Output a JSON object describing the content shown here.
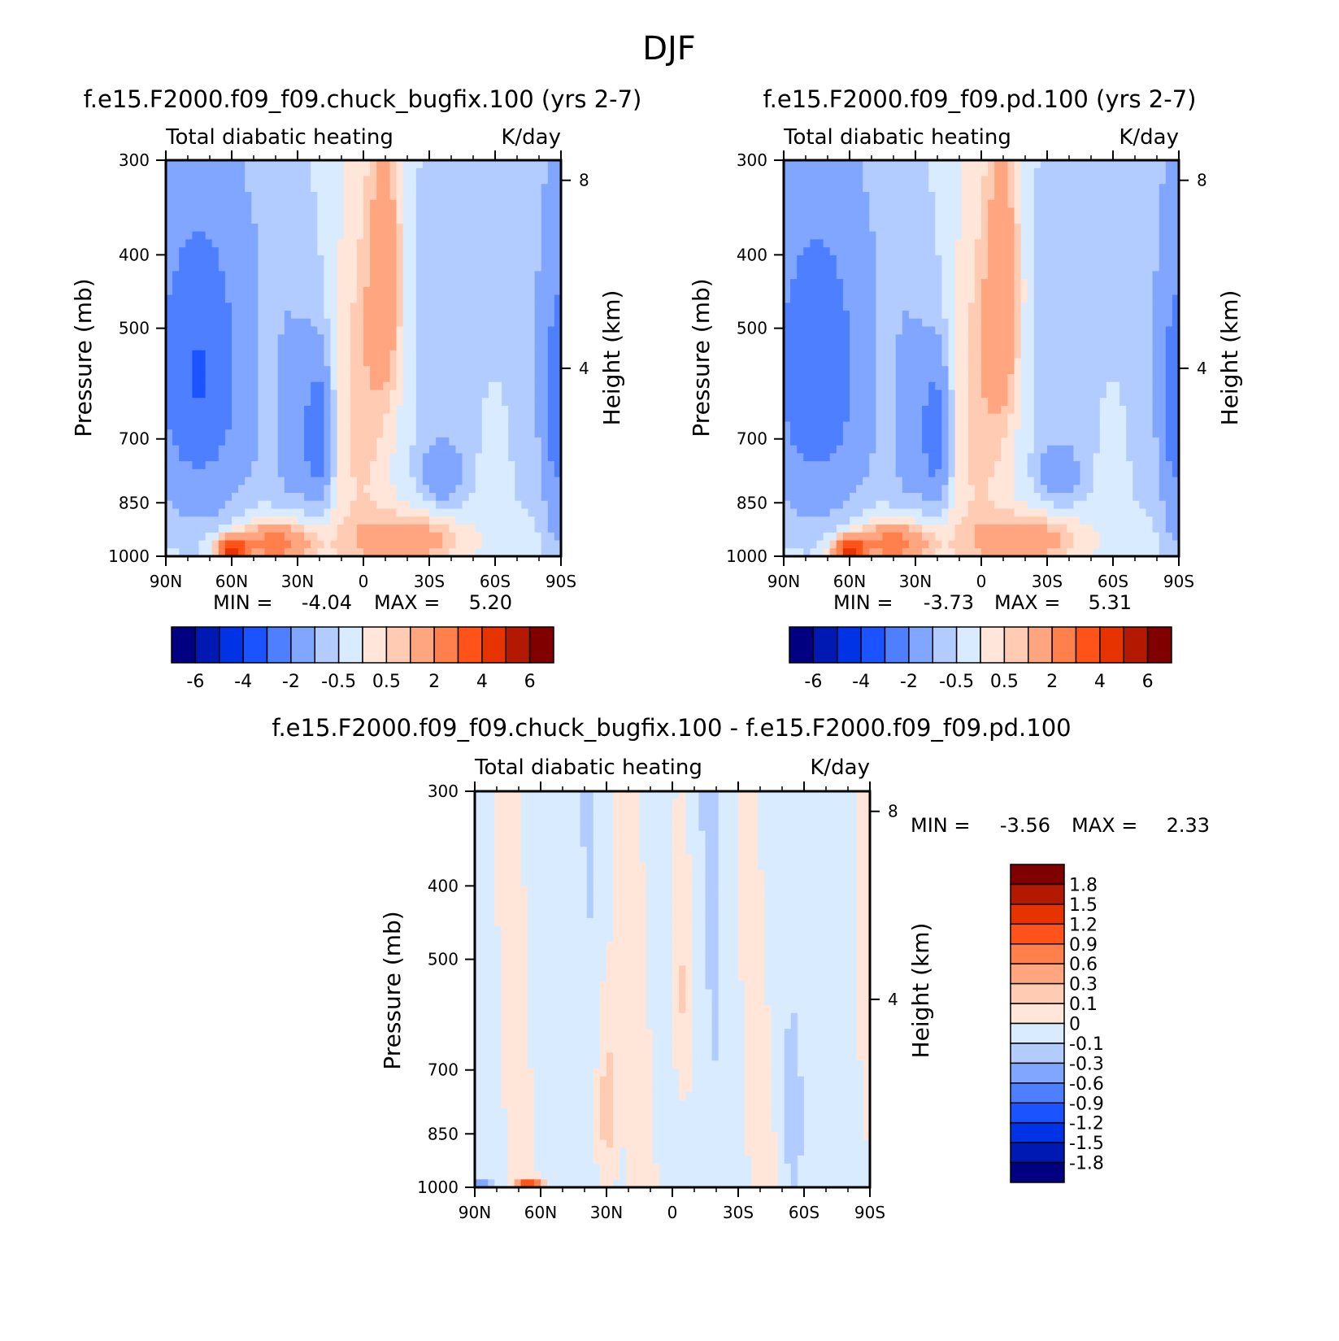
{
  "title": "DJF",
  "colors": {
    "full": [
      "#000080",
      "#0019b3",
      "#0033e6",
      "#1a53ff",
      "#4d7fff",
      "#80a6ff",
      "#b3ccff",
      "#d9ebff",
      "#ffe6d9",
      "#ffcbb3",
      "#ffa680",
      "#ff7f4d",
      "#ff531a",
      "#e63300",
      "#b31900",
      "#800000"
    ],
    "diff": [
      "#000080",
      "#0019b3",
      "#0033e6",
      "#1a53ff",
      "#4d7fff",
      "#80a6ff",
      "#b3ccff",
      "#d9ebff",
      "#ffe6d9",
      "#ffcbb3",
      "#ffa680",
      "#ff7f4d",
      "#ff531a",
      "#e63300",
      "#b31900",
      "#800000"
    ]
  },
  "chart_data": [
    {
      "type": "heatmap",
      "subtitle": "f.e15.F2000.f09_f09.chuck_bugfix.100 (yrs 2-7)",
      "left_label": "Total diabatic heating",
      "right_label": "K/day",
      "ylabel": "Pressure (mb)",
      "y2label": "Height (km)",
      "xlabels": [
        "90N",
        "60N",
        "30N",
        "0",
        "30S",
        "60S",
        "90S"
      ],
      "x": [
        90,
        60,
        30,
        0,
        -30,
        -60,
        -90
      ],
      "yticks": [
        "300",
        "400",
        "500",
        "700",
        "850",
        "1000"
      ],
      "y": [
        300,
        400,
        500,
        700,
        850,
        1000
      ],
      "y2ticks": [
        "8",
        "4"
      ],
      "y2": [
        8,
        4
      ],
      "min_label": "MIN =",
      "min_value": "-4.04",
      "max_label": "MAX =",
      "max_value": "5.20",
      "colorbar_labels": [
        "-6",
        "-4",
        "-2",
        "-0.5",
        "0.5",
        "2",
        "4",
        "6"
      ],
      "levels": [
        -6,
        -5,
        -4,
        -3,
        -2,
        -1,
        -0.5,
        0,
        0.5,
        1,
        2,
        3,
        4,
        5,
        6
      ],
      "fields": [
        {
          "lat": 75,
          "p": 580,
          "dx": 20,
          "dp": 260,
          "v": -2.2
        },
        {
          "lat": 30,
          "p": 700,
          "dx": 14,
          "dp": 200,
          "v": -0.9
        },
        {
          "lat": 20,
          "p": 690,
          "dx": 6,
          "dp": 140,
          "v": -2.1
        },
        {
          "lat": 43,
          "p": 640,
          "dx": 5,
          "dp": 170,
          "v": 0.6
        },
        {
          "lat": 2,
          "p": 600,
          "dx": 14,
          "dp": 300,
          "v": 1.2
        },
        {
          "lat": -10,
          "p": 430,
          "dx": 8,
          "dp": 180,
          "v": 2.0
        },
        {
          "lat": -60,
          "p": 700,
          "dx": 8,
          "dp": 200,
          "v": 0.5
        },
        {
          "lat": -35,
          "p": 780,
          "dx": 9,
          "dp": 70,
          "v": -1.3
        },
        {
          "lat": -88,
          "p": 650,
          "dx": 6,
          "dp": 280,
          "v": -1.8
        },
        {
          "lat": 40,
          "p": 960,
          "dx": 16,
          "dp": 60,
          "v": 3.0
        },
        {
          "lat": 60,
          "p": 980,
          "dx": 7,
          "dp": 35,
          "v": 4.5
        },
        {
          "lat": -20,
          "p": 950,
          "dx": 25,
          "dp": 70,
          "v": 1.8
        }
      ]
    },
    {
      "type": "heatmap",
      "subtitle": "f.e15.F2000.f09_f09.pd.100 (yrs 2-7)",
      "left_label": "Total diabatic heating",
      "right_label": "K/day",
      "ylabel": "Pressure (mb)",
      "y2label": "Height (km)",
      "xlabels": [
        "90N",
        "60N",
        "30N",
        "0",
        "30S",
        "60S",
        "90S"
      ],
      "x": [
        90,
        60,
        30,
        0,
        -30,
        -60,
        -90
      ],
      "yticks": [
        "300",
        "400",
        "500",
        "700",
        "850",
        "1000"
      ],
      "y": [
        300,
        400,
        500,
        700,
        850,
        1000
      ],
      "y2ticks": [
        "8",
        "4"
      ],
      "y2": [
        8,
        4
      ],
      "min_label": "MIN =",
      "min_value": "-3.73",
      "max_label": "MAX =",
      "max_value": "5.31",
      "colorbar_labels": [
        "-6",
        "-4",
        "-2",
        "-0.5",
        "0.5",
        "2",
        "4",
        "6"
      ],
      "levels": [
        -6,
        -5,
        -4,
        -3,
        -2,
        -1,
        -0.5,
        0,
        0.5,
        1,
        2,
        3,
        4,
        5,
        6
      ],
      "fields": [
        {
          "lat": 75,
          "p": 580,
          "dx": 20,
          "dp": 260,
          "v": -2.1
        },
        {
          "lat": 30,
          "p": 700,
          "dx": 14,
          "dp": 200,
          "v": -0.9
        },
        {
          "lat": 20,
          "p": 690,
          "dx": 6,
          "dp": 140,
          "v": -2.0
        },
        {
          "lat": 43,
          "p": 640,
          "dx": 5,
          "dp": 170,
          "v": 0.6
        },
        {
          "lat": 2,
          "p": 600,
          "dx": 14,
          "dp": 300,
          "v": 1.2
        },
        {
          "lat": -10,
          "p": 450,
          "dx": 8,
          "dp": 200,
          "v": 2.1
        },
        {
          "lat": -60,
          "p": 700,
          "dx": 8,
          "dp": 200,
          "v": 0.5
        },
        {
          "lat": -35,
          "p": 780,
          "dx": 9,
          "dp": 70,
          "v": -1.2
        },
        {
          "lat": -88,
          "p": 650,
          "dx": 6,
          "dp": 280,
          "v": -1.8
        },
        {
          "lat": 40,
          "p": 960,
          "dx": 16,
          "dp": 60,
          "v": 3.0
        },
        {
          "lat": 60,
          "p": 980,
          "dx": 7,
          "dp": 35,
          "v": 4.6
        },
        {
          "lat": -20,
          "p": 950,
          "dx": 25,
          "dp": 70,
          "v": 1.8
        }
      ]
    },
    {
      "type": "heatmap",
      "subtitle": "f.e15.F2000.f09_f09.chuck_bugfix.100 - f.e15.F2000.f09_f09.pd.100",
      "left_label": "Total diabatic heating",
      "right_label": "K/day",
      "ylabel": "Pressure (mb)",
      "y2label": "Height (km)",
      "xlabels": [
        "90N",
        "60N",
        "30N",
        "0",
        "30S",
        "60S",
        "90S"
      ],
      "x": [
        90,
        60,
        30,
        0,
        -30,
        -60,
        -90
      ],
      "yticks": [
        "300",
        "400",
        "500",
        "700",
        "850",
        "1000"
      ],
      "y": [
        300,
        400,
        500,
        700,
        850,
        1000
      ],
      "y2ticks": [
        "8",
        "4"
      ],
      "y2": [
        8,
        4
      ],
      "min_label": "MIN =",
      "min_value": "-3.56",
      "max_label": "MAX =",
      "max_value": "2.33",
      "colorbar_labels": [
        "1.8",
        "1.5",
        "1.2",
        "0.9",
        "0.6",
        "0.3",
        "0.1",
        "0",
        "-0.1",
        "-0.3",
        "-0.6",
        "-0.9",
        "-1.2",
        "-1.5",
        "-1.8"
      ],
      "levels": [
        -1.8,
        -1.5,
        -1.2,
        -0.9,
        -0.6,
        -0.3,
        -0.1,
        0,
        0.1,
        0.3,
        0.6,
        0.9,
        1.2,
        1.5,
        1.8
      ],
      "fields": [
        {
          "lat": 30,
          "p": 780,
          "dx": 5,
          "dp": 260,
          "v": 0.22
        },
        {
          "lat": -5,
          "p": 560,
          "dx": 5,
          "dp": 220,
          "v": 0.15
        },
        {
          "lat": -55,
          "p": 760,
          "dx": 4,
          "dp": 200,
          "v": -0.15
        },
        {
          "lat": -75,
          "p": 600,
          "dx": 12,
          "dp": 300,
          "v": 0.06
        },
        {
          "lat": 65,
          "p": 990,
          "dx": 5,
          "dp": 15,
          "v": 1.2
        },
        {
          "lat": 87,
          "p": 995,
          "dx": 3,
          "dp": 10,
          "v": -1.0
        }
      ]
    }
  ]
}
